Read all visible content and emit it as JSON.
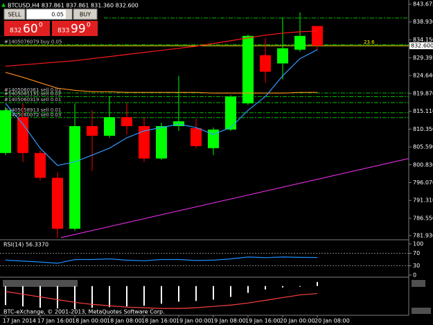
{
  "ui": {
    "header": "BTCUSD,H4  837.861 837.861 831.360 832.600",
    "trade_panel": {
      "sell": "SELL",
      "lot": "0.05",
      "buy": "BUY",
      "bid": {
        "big": "832",
        "main": "60",
        "small": "0"
      },
      "ask": {
        "big": "833",
        "main": "99",
        "small": "0"
      }
    },
    "footer": "BTC-eXchange, © 2001-2013, MetaQuotes Software Corp."
  },
  "chart_data": [
    {
      "type": "candlestick",
      "categories": [
        "17 Jan 2014",
        null,
        "17 Jan 16:00",
        null,
        "18 Jan 00:00",
        null,
        "18 Jan 08:00",
        null,
        "18 Jan 16:00",
        null,
        "19 Jan 00:00",
        null,
        "19 Jan 08:00",
        null,
        "19 Jan 16:00",
        null,
        "20 Jan 00:00",
        null,
        "20 Jan 08:00"
      ],
      "open": [
        803.97,
        813.53,
        803.97,
        797.35,
        783.75,
        811.14,
        808.57,
        813.53,
        811.14,
        802.5,
        811.14,
        810.59,
        805.26,
        810.22,
        817.21,
        830.07,
        827.87,
        831.54,
        837.861
      ],
      "high": [
        816.29,
        817.21,
        804.71,
        798.82,
        817.21,
        815.37,
        819.04,
        817.21,
        813.53,
        812.06,
        824.56,
        813.16,
        810.77,
        819.41,
        835.59,
        834.67,
        840.18,
        841.47,
        837.861
      ],
      "low": [
        803.42,
        801.58,
        796.62,
        781.36,
        783.2,
        799.19,
        808.02,
        808.93,
        801.58,
        802.13,
        809.85,
        805.26,
        803.42,
        809.85,
        816.84,
        822.72,
        823.64,
        830.99,
        831.36
      ],
      "close": [
        815.37,
        803.97,
        797.35,
        783.75,
        811.14,
        808.57,
        813.53,
        811.14,
        802.5,
        811.14,
        812.43,
        805.81,
        810.22,
        819.04,
        835.22,
        825.66,
        831.91,
        835.22,
        832.6
      ],
      "up_color": "#00ff00",
      "down_color": "#ff0000",
      "lines": [
        {
          "color": "#ff1a1a",
          "values": [
            827.13,
            827.5,
            827.87,
            828.24,
            828.6,
            829.16,
            829.71,
            830.26,
            830.81,
            831.36,
            831.91,
            832.46,
            833.2,
            833.93,
            834.67,
            835.41,
            835.96,
            836.32,
            836.51
          ]
        },
        {
          "color": "#ff8c1a",
          "values": [
            825.48,
            824.19,
            822.72,
            821.25,
            820.7,
            820.33,
            820.33,
            820.15,
            820.15,
            820.15,
            820.15,
            820.15,
            819.96,
            819.96,
            819.96,
            819.96,
            819.96,
            820.15,
            820.15
          ]
        },
        {
          "color": "#3399ff",
          "values": [
            817.21,
            811.69,
            805.26,
            800.66,
            801.58,
            803.42,
            805.26,
            808.02,
            809.85,
            810.77,
            811.69,
            810.77,
            808.93,
            810.77,
            815.37,
            819.04,
            824.56,
            829.16,
            831.54
          ]
        }
      ],
      "trendline": {
        "color": "#ff33ff",
        "x": [
          3.2,
          23.28
        ],
        "y": [
          781.4,
          802.5
        ]
      },
      "last_price": {
        "value": 832.6,
        "label": "832.600"
      },
      "fibo_label": 23.6,
      "tp_levels": [
        840.0
      ],
      "orders": [
        {
          "label": "#1405076079 buy 0.05",
          "price": 832.9
        },
        {
          "label": "#1405060361 sell 0.01",
          "price": 820.0
        },
        {
          "label": "#1405061131 sell 0.02",
          "price": 819.0
        },
        {
          "label": "#1405060319 sell 0.01",
          "price": 817.4
        },
        {
          "label": "#1405058913 sell 0.01",
          "price": 814.7
        },
        {
          "label": "#1405060072 sell 0.03",
          "price": 813.4
        }
      ],
      "ylim": [
        781.0,
        844.8
      ],
      "yticks": [
        843.675,
        {
          "value": 838.93,
          "label": "838.930"
        },
        {
          "value": 834.15,
          "label": "834.150"
        },
        829.395,
        {
          "value": 824.64,
          "label": "824.640"
        },
        {
          "value": 819.87,
          "label": "819.870"
        },
        {
          "value": 815.11,
          "label": "815.110"
        },
        {
          "value": 810.35,
          "label": "810.350"
        },
        {
          "value": 805.59,
          "label": "805.590"
        },
        {
          "value": 800.83,
          "label": "800.830"
        },
        {
          "value": 796.07,
          "label": "796.070"
        },
        {
          "value": 791.31,
          "label": "791.310"
        },
        {
          "value": 786.55,
          "label": "786.550"
        },
        {
          "value": 781.93,
          "label": "781.930"
        }
      ]
    },
    {
      "type": "line",
      "title": "RSI(14) 56.3370",
      "color": "#1e90ff",
      "values": [
        48,
        45,
        42,
        38,
        50,
        50,
        52,
        48,
        46,
        50,
        50,
        47,
        48,
        52,
        58,
        56,
        58,
        57,
        56.337
      ],
      "ylim": [
        0,
        100
      ],
      "yticks": [
        100,
        70,
        30,
        0
      ]
    },
    {
      "type": "bar",
      "color": "#ffffff",
      "signal_color": "#ff4040",
      "values": [
        -2.8,
        -3.0,
        -3.2,
        -3.3,
        -3.4,
        -3.2,
        -3.1,
        -3.0,
        -2.9,
        -2.6,
        -2.3,
        -2.2,
        -2.0,
        -1.6,
        -1.0,
        -0.5,
        -0.2,
        -0.1,
        0.6
      ],
      "signal": [
        -0.8,
        -1.2,
        -1.6,
        -2.0,
        -2.4,
        -2.7,
        -2.9,
        -3.1,
        -3.2,
        -3.3,
        -3.3,
        -3.2,
        -3.0,
        -2.8,
        -2.5,
        -2.1,
        -1.7,
        -1.3,
        -1.1
      ],
      "ylim": [
        -4,
        1
      ]
    }
  ]
}
